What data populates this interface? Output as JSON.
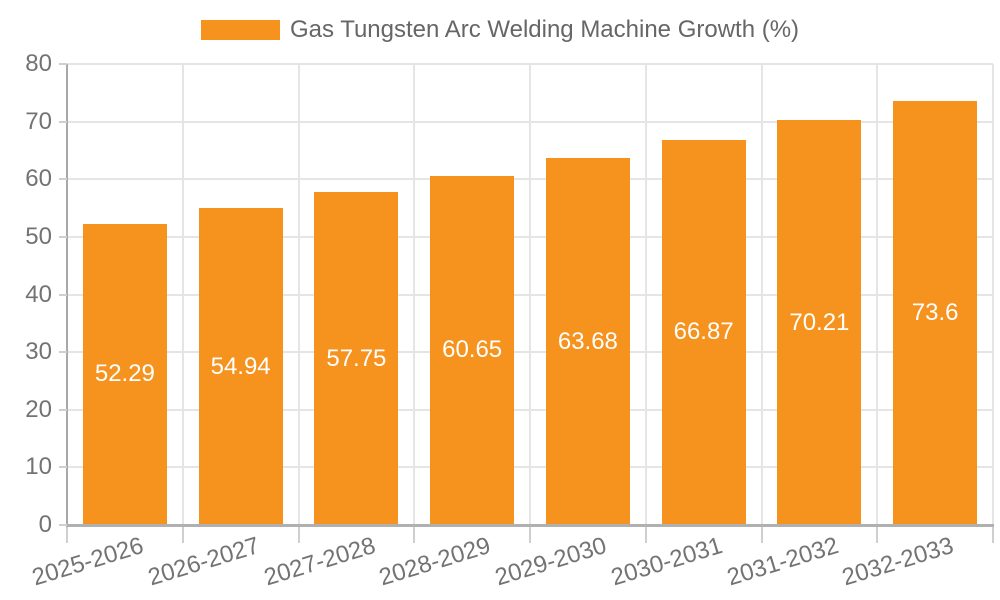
{
  "legend": {
    "label": "Gas Tungsten Arc Welding Machine Growth (%)"
  },
  "chart_data": {
    "type": "bar",
    "title": "",
    "legend_entries": [
      "Gas Tungsten Arc Welding Machine Growth (%)"
    ],
    "legend_position": "top",
    "categories": [
      "2025-2026",
      "2026-2027",
      "2027-2028",
      "2028-2029",
      "2029-2030",
      "2030-2031",
      "2031-2032",
      "2032-2033"
    ],
    "series": [
      {
        "name": "Gas Tungsten Arc Welding Machine Growth (%)",
        "values": [
          52.29,
          54.94,
          57.75,
          60.65,
          63.68,
          66.87,
          70.21,
          73.6
        ],
        "data_labels": [
          "52.29",
          "54.94",
          "57.75",
          "60.65",
          "63.68",
          "66.87",
          "70.21",
          "73.6"
        ]
      }
    ],
    "xlabel": "",
    "ylabel": "",
    "ylim": [
      0,
      80
    ],
    "yticks": [
      0,
      10,
      20,
      30,
      40,
      50,
      60,
      70,
      80
    ],
    "grid": true,
    "colors": {
      "bar": "#f6921e",
      "data_label_text": "#ffffff",
      "axis_text": "#737373",
      "legend_text": "#666666",
      "gridline": "#e5e5e5",
      "axis_line": "#b0b0b0"
    }
  }
}
